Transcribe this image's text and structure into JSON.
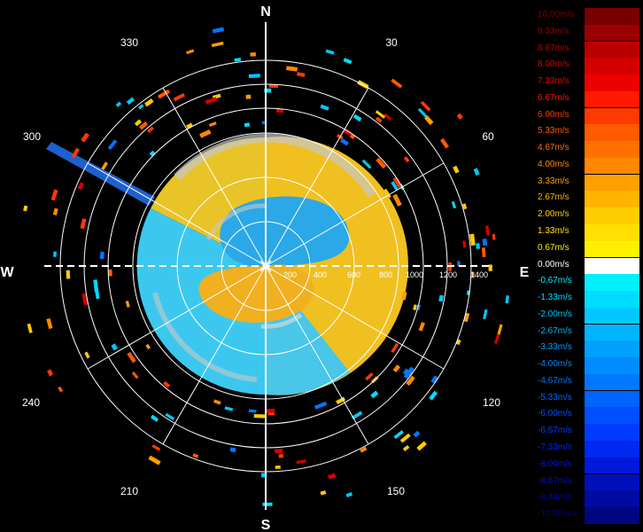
{
  "cardinals": {
    "n": "N",
    "e": "E",
    "s": "S",
    "w": "W"
  },
  "bearings": [
    "30",
    "60",
    "120",
    "150",
    "210",
    "240",
    "300",
    "330"
  ],
  "range_labels": [
    "200",
    "400",
    "600",
    "800",
    "1000",
    "1200",
    "1400"
  ],
  "legend": [
    {
      "label": "10.00m/s",
      "color": "#7a0000"
    },
    {
      "label": "9.33m/s",
      "color": "#9a0000"
    },
    {
      "label": "8.67m/s",
      "color": "#b80000"
    },
    {
      "label": "8.00m/s",
      "color": "#d40000"
    },
    {
      "label": "7.33m/s",
      "color": "#ee0000"
    },
    {
      "label": "6.67m/s",
      "color": "#ff1a00"
    },
    {
      "label": "6.00m/s",
      "color": "#ff3a00"
    },
    {
      "label": "5.33m/s",
      "color": "#ff5a00"
    },
    {
      "label": "4.67m/s",
      "color": "#ff7000"
    },
    {
      "label": "4.00m/s",
      "color": "#ff8800"
    },
    {
      "label": "3.33m/s",
      "color": "#ffa000"
    },
    {
      "label": "2.67m/s",
      "color": "#ffb400"
    },
    {
      "label": "2.00m/s",
      "color": "#ffcc00"
    },
    {
      "label": "1.33m/s",
      "color": "#ffe000"
    },
    {
      "label": "0.67m/s",
      "color": "#fff000"
    },
    {
      "label": "0.00m/s",
      "color": "#ffffff"
    },
    {
      "label": "-0.67m/s",
      "color": "#00f0ff"
    },
    {
      "label": "-1.33m/s",
      "color": "#00dcff"
    },
    {
      "label": "-2.00m/s",
      "color": "#00c8ff"
    },
    {
      "label": "-2.67m/s",
      "color": "#00b4ff"
    },
    {
      "label": "-3.33m/s",
      "color": "#00a0ff"
    },
    {
      "label": "-4.00m/s",
      "color": "#008cff"
    },
    {
      "label": "-4.67m/s",
      "color": "#0078ff"
    },
    {
      "label": "-5.33m/s",
      "color": "#0064ff"
    },
    {
      "label": "-6.00m/s",
      "color": "#0050ff"
    },
    {
      "label": "-6.67m/s",
      "color": "#003cff"
    },
    {
      "label": "-7.33m/s",
      "color": "#0028f0"
    },
    {
      "label": "-8.00m/s",
      "color": "#0018d8"
    },
    {
      "label": "-8.67m/s",
      "color": "#0010bc"
    },
    {
      "label": "-9.33m/s",
      "color": "#000aa0"
    },
    {
      "label": "-10.00m/s",
      "color": "#000680"
    }
  ],
  "colors": {
    "background": "#000000",
    "grid": "#ffffff",
    "approaching_fill": "#3cc8ee",
    "receding_fill": "#f0c020",
    "clutter": "#c8c8c8"
  }
}
